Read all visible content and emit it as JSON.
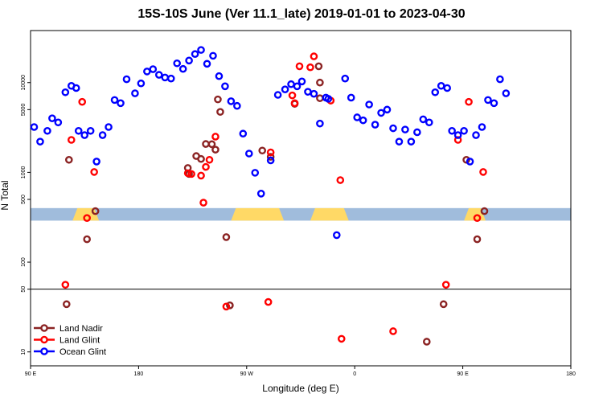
{
  "chart_data": {
    "type": "scatter",
    "title": "15S-10S June (Ver 11.1_late)   2019-01-01 to 2023-04-30",
    "xlabel": "Longitude (deg E)",
    "ylabel": "N Total",
    "x_ticks": [
      {
        "lon": 90,
        "label": "90 E"
      },
      {
        "lon": 180,
        "label": "180"
      },
      {
        "lon": 270,
        "label": "90 W"
      },
      {
        "lon": 360,
        "label": "0"
      },
      {
        "lon": 450,
        "label": "90 E"
      },
      {
        "lon": 540,
        "label": "180"
      }
    ],
    "xlim": [
      90,
      540
    ],
    "y_scale": "log",
    "y_ticks": [
      {
        "value": 10,
        "label": "10"
      },
      {
        "value": 50,
        "label": "50"
      },
      {
        "value": 100,
        "label": "100"
      },
      {
        "value": 500,
        "label": "500"
      },
      {
        "value": 1000,
        "label": "1000"
      },
      {
        "value": 5000,
        "label": "5000"
      },
      {
        "value": 10000,
        "label": "10000"
      }
    ],
    "ylim": [
      7,
      38000
    ],
    "reference_line_y": 50,
    "legend_position": "bottom-left",
    "series": [
      {
        "name": "Land Nadir",
        "color": "#8B2323",
        "points": [
          [
            122,
            1380
          ],
          [
            137,
            180
          ],
          [
            144,
            370
          ],
          [
            221,
            1120
          ],
          [
            222,
            960
          ],
          [
            228,
            1520
          ],
          [
            232,
            1410
          ],
          [
            236,
            2070
          ],
          [
            241,
            2060
          ],
          [
            244,
            1790
          ],
          [
            246,
            6500
          ],
          [
            248,
            4720
          ],
          [
            253,
            190
          ],
          [
            283,
            1750
          ],
          [
            290,
            1490
          ],
          [
            420,
            13
          ],
          [
            453,
            1380
          ],
          [
            462,
            180
          ],
          [
            468,
            370
          ],
          [
            120,
            34
          ],
          [
            256,
            33
          ],
          [
            331,
            10000
          ],
          [
            330,
            15200
          ],
          [
            310,
            5800
          ],
          [
            331,
            6700
          ],
          [
            434,
            34
          ]
        ]
      },
      {
        "name": "Land Glint",
        "color": "#FF0000",
        "points": [
          [
            119,
            56
          ],
          [
            124,
            2300
          ],
          [
            133,
            6100
          ],
          [
            137,
            310
          ],
          [
            143,
            1010
          ],
          [
            221,
            980
          ],
          [
            232,
            920
          ],
          [
            236,
            1150
          ],
          [
            239,
            1380
          ],
          [
            244,
            2500
          ],
          [
            253,
            32
          ],
          [
            224,
            960
          ],
          [
            234,
            460
          ],
          [
            308,
            7200
          ],
          [
            310,
            5900
          ],
          [
            314,
            15200
          ],
          [
            323,
            14800
          ],
          [
            326,
            19600
          ],
          [
            340,
            6300
          ],
          [
            348,
            820
          ],
          [
            288,
            36
          ],
          [
            290,
            1670
          ],
          [
            392,
            17
          ],
          [
            436,
            56
          ],
          [
            446,
            2300
          ],
          [
            455,
            6100
          ],
          [
            462,
            310
          ],
          [
            467,
            1010
          ],
          [
            349,
            14
          ]
        ]
      },
      {
        "name": "Ocean Glint",
        "color": "#0000FF",
        "points": [
          [
            93,
            3200
          ],
          [
            98,
            2200
          ],
          [
            104,
            2900
          ],
          [
            108,
            4000
          ],
          [
            113,
            3600
          ],
          [
            119,
            7800
          ],
          [
            124,
            9200
          ],
          [
            128,
            8700
          ],
          [
            130,
            2900
          ],
          [
            135,
            2600
          ],
          [
            140,
            2900
          ],
          [
            145,
            1320
          ],
          [
            150,
            2600
          ],
          [
            155,
            3200
          ],
          [
            160,
            6400
          ],
          [
            165,
            5900
          ],
          [
            170,
            10900
          ],
          [
            177,
            7600
          ],
          [
            182,
            9800
          ],
          [
            187,
            13300
          ],
          [
            192,
            14100
          ],
          [
            197,
            12200
          ],
          [
            202,
            11400
          ],
          [
            207,
            11100
          ],
          [
            212,
            16400
          ],
          [
            217,
            14200
          ],
          [
            222,
            17600
          ],
          [
            227,
            20800
          ],
          [
            232,
            23100
          ],
          [
            237,
            16200
          ],
          [
            242,
            19900
          ],
          [
            247,
            11800
          ],
          [
            252,
            9100
          ],
          [
            257,
            6200
          ],
          [
            262,
            5500
          ],
          [
            267,
            2700
          ],
          [
            272,
            1620
          ],
          [
            277,
            990
          ],
          [
            282,
            580
          ],
          [
            290,
            1360
          ],
          [
            296,
            7300
          ],
          [
            302,
            8400
          ],
          [
            307,
            9600
          ],
          [
            312,
            9100
          ],
          [
            316,
            10300
          ],
          [
            321,
            7900
          ],
          [
            326,
            7500
          ],
          [
            331,
            3500
          ],
          [
            336,
            6800
          ],
          [
            338,
            6600
          ],
          [
            345,
            200
          ],
          [
            352,
            11100
          ],
          [
            357,
            6800
          ],
          [
            362,
            4100
          ],
          [
            367,
            3800
          ],
          [
            372,
            5700
          ],
          [
            377,
            3400
          ],
          [
            382,
            4600
          ],
          [
            387,
            5000
          ],
          [
            392,
            3100
          ],
          [
            397,
            2200
          ],
          [
            402,
            3000
          ],
          [
            407,
            2200
          ],
          [
            412,
            2800
          ],
          [
            417,
            3900
          ],
          [
            422,
            3600
          ],
          [
            427,
            7800
          ],
          [
            432,
            9200
          ],
          [
            437,
            8700
          ],
          [
            441,
            2900
          ],
          [
            446,
            2600
          ],
          [
            451,
            2900
          ],
          [
            456,
            1320
          ],
          [
            461,
            2600
          ],
          [
            466,
            3200
          ],
          [
            471,
            6400
          ],
          [
            476,
            5900
          ],
          [
            481,
            10900
          ],
          [
            486,
            7600
          ]
        ]
      }
    ],
    "background_band": {
      "y_low": 290,
      "y_high": 400,
      "color": "#a0bcdc",
      "land_color": "#ffd966",
      "land_spans": [
        [
          125,
          147
        ],
        [
          257,
          301
        ],
        [
          323,
          355
        ],
        [
          451,
          469
        ]
      ]
    }
  }
}
